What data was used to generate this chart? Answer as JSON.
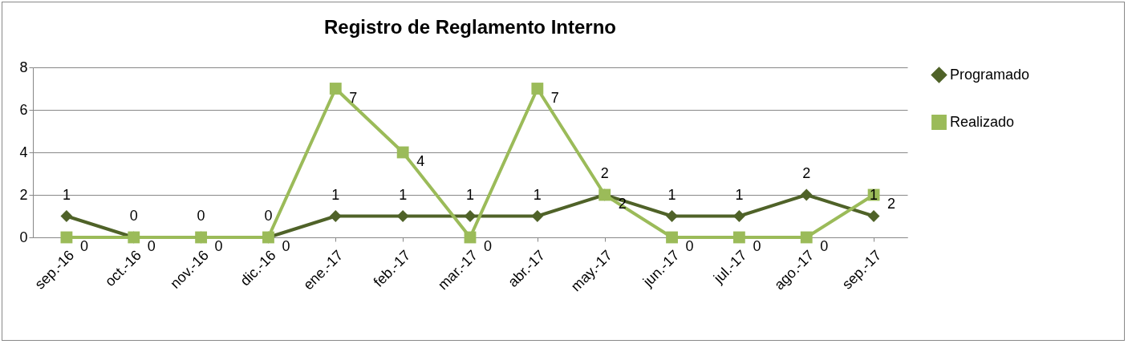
{
  "chart_data": {
    "type": "line",
    "title": "Registro de Reglamento Interno",
    "categories": [
      "sep.-16",
      "oct.-16",
      "nov.-16",
      "dic.-16",
      "ene.-17",
      "feb.-17",
      "mar.-17",
      "abr.-17",
      "may.-17",
      "jun.-17",
      "jul.-17",
      "ago.-17",
      "sep.-17"
    ],
    "series": [
      {
        "name": "Programado",
        "color": "#4f6228",
        "marker": "diamond",
        "values": [
          1,
          0,
          0,
          0,
          1,
          1,
          1,
          1,
          2,
          1,
          1,
          2,
          1
        ]
      },
      {
        "name": "Realizado",
        "color": "#9bbb59",
        "marker": "square",
        "values": [
          0,
          0,
          0,
          0,
          7,
          4,
          0,
          7,
          2,
          0,
          0,
          0,
          2
        ]
      }
    ],
    "ylim": [
      0,
      8
    ],
    "yticks": [
      0,
      2,
      4,
      6,
      8
    ],
    "grid": "y",
    "legend": "right",
    "data_labels": true,
    "line_style": "solid"
  }
}
